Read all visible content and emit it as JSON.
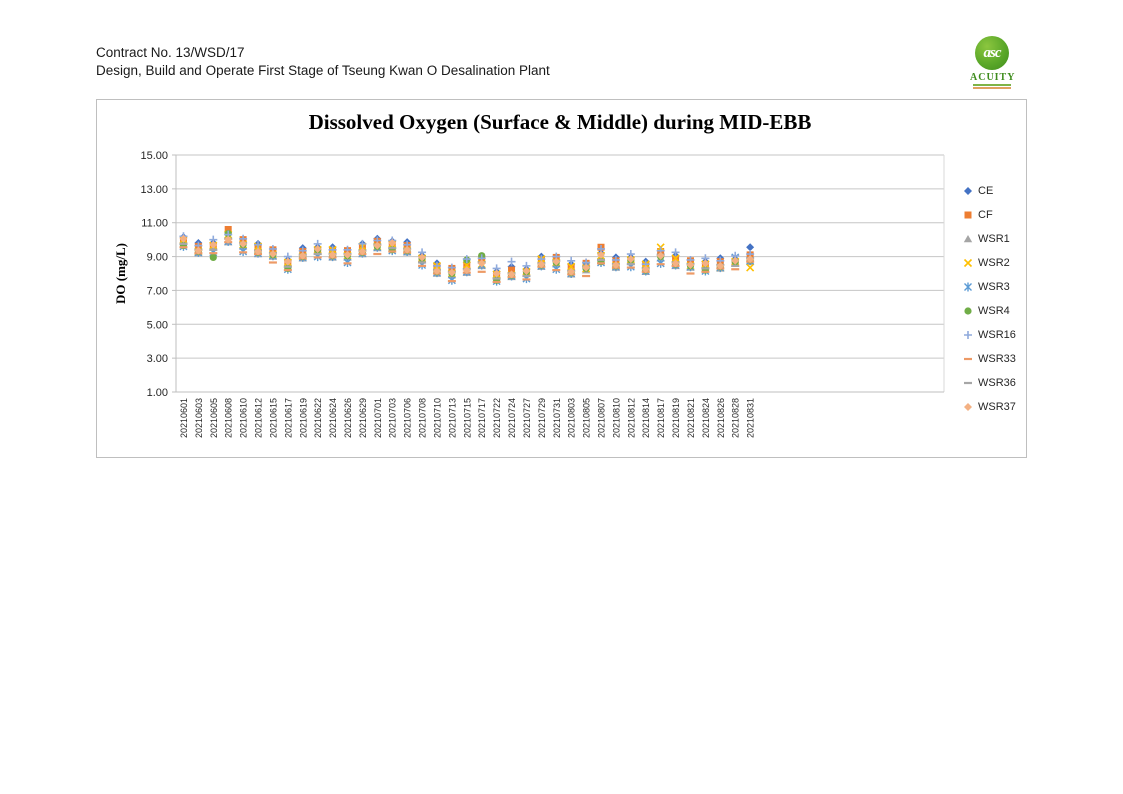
{
  "header": {
    "line1": "Contract No. 13/WSD/17",
    "line2": "Design, Build and Operate First Stage of Tseung Kwan O Desalination Plant"
  },
  "logo": {
    "monogram": "asc",
    "name": "ACUITY"
  },
  "chart_data": {
    "type": "scatter",
    "title": "Dissolved Oxygen (Surface & Middle) during MID-EBB",
    "xlabel": "",
    "ylabel": "DO (mg/L)",
    "ylim": [
      1,
      15
    ],
    "yticks": [
      1,
      3,
      5,
      7,
      9,
      11,
      13,
      15
    ],
    "ytick_labels": [
      "1.00",
      "3.00",
      "5.00",
      "7.00",
      "9.00",
      "11.00",
      "13.00",
      "15.00"
    ],
    "grid": true,
    "legend_position": "right",
    "categories": [
      "20210601",
      "20210603",
      "20210605",
      "20210608",
      "20210610",
      "20210612",
      "20210615",
      "20210617",
      "20210619",
      "20210622",
      "20210624",
      "20210626",
      "20210629",
      "20210701",
      "20210703",
      "20210706",
      "20210708",
      "20210710",
      "20210713",
      "20210715",
      "20210717",
      "20210722",
      "20210724",
      "20210727",
      "20210729",
      "20210731",
      "20210803",
      "20210805",
      "20210807",
      "20210810",
      "20210812",
      "20210814",
      "20210817",
      "20210819",
      "20210821",
      "20210824",
      "20210826",
      "20210828",
      "20210831"
    ],
    "series": [
      {
        "name": "CE",
        "marker": "diamond",
        "color": "#4472C4",
        "values": [
          10.15,
          9.8,
          9.8,
          10.45,
          9.85,
          9.75,
          9.25,
          8.8,
          9.5,
          9.55,
          9.55,
          9.2,
          9.75,
          10.05,
          9.9,
          9.85,
          9.05,
          8.6,
          8.15,
          8.65,
          8.7,
          8.1,
          8.4,
          8.25,
          9.0,
          8.8,
          8.55,
          8.45,
          9.2,
          8.95,
          8.95,
          8.7,
          9.15,
          9.05,
          8.6,
          8.7,
          8.9,
          8.85,
          9.55
        ]
      },
      {
        "name": "CF",
        "marker": "square",
        "color": "#ED7D31",
        "values": [
          9.95,
          9.6,
          9.6,
          10.6,
          10.0,
          9.55,
          9.4,
          8.6,
          9.3,
          9.35,
          9.35,
          9.35,
          9.55,
          9.9,
          9.7,
          9.65,
          8.85,
          8.4,
          8.3,
          8.45,
          8.85,
          7.9,
          8.2,
          8.05,
          8.8,
          8.95,
          8.35,
          8.6,
          9.55,
          8.75,
          8.75,
          8.5,
          9.3,
          8.85,
          8.75,
          8.5,
          8.7,
          8.65,
          9.1
        ]
      },
      {
        "name": "WSR1",
        "marker": "triangle",
        "color": "#A5A5A5",
        "values": [
          9.9,
          9.2,
          9.55,
          9.85,
          9.6,
          9.15,
          9.0,
          8.55,
          8.9,
          9.3,
          8.95,
          8.95,
          9.15,
          9.5,
          9.65,
          9.25,
          8.8,
          8.0,
          7.9,
          8.05,
          8.45,
          7.85,
          7.8,
          8.0,
          8.4,
          8.55,
          7.95,
          8.2,
          8.95,
          8.35,
          8.7,
          8.1,
          8.9,
          8.45,
          8.35,
          8.45,
          8.3,
          8.6,
          8.7
        ]
      },
      {
        "name": "WSR2",
        "marker": "x",
        "color": "#FFC000",
        "values": [
          10.0,
          9.3,
          9.65,
          10.3,
          9.7,
          9.6,
          9.1,
          8.65,
          9.0,
          9.4,
          9.4,
          9.05,
          9.6,
          9.6,
          9.75,
          9.35,
          8.9,
          8.45,
          8.0,
          8.5,
          8.55,
          7.95,
          7.9,
          8.1,
          8.85,
          8.65,
          8.4,
          8.3,
          9.05,
          8.45,
          8.8,
          8.55,
          9.55,
          8.9,
          8.45,
          8.55,
          8.35,
          8.7,
          8.35
        ]
      },
      {
        "name": "WSR3",
        "marker": "star",
        "color": "#5B9BD5",
        "values": [
          9.6,
          9.25,
          9.25,
          9.9,
          9.3,
          9.2,
          9.05,
          8.25,
          8.95,
          9.0,
          9.0,
          8.65,
          9.2,
          9.55,
          9.35,
          9.3,
          8.5,
          8.05,
          7.6,
          8.1,
          8.5,
          7.55,
          7.85,
          7.7,
          8.45,
          8.25,
          8.0,
          8.45,
          8.65,
          8.4,
          8.4,
          8.15,
          8.6,
          8.5,
          8.4,
          8.15,
          8.35,
          8.95,
          8.75
        ]
      },
      {
        "name": "WSR4",
        "marker": "circle",
        "color": "#70AD47",
        "values": [
          9.65,
          9.3,
          8.95,
          10.35,
          9.7,
          9.25,
          9.1,
          8.3,
          9.0,
          9.4,
          9.05,
          9.05,
          9.25,
          9.6,
          9.4,
          9.35,
          8.9,
          8.1,
          8.0,
          8.8,
          9.05,
          7.6,
          7.9,
          8.1,
          8.5,
          8.65,
          8.05,
          8.3,
          8.7,
          8.45,
          8.8,
          8.2,
          9.0,
          8.55,
          8.45,
          8.2,
          8.4,
          8.7,
          8.8
        ]
      },
      {
        "name": "WSR16",
        "marker": "plus",
        "color": "#8FAADC",
        "values": [
          10.2,
          9.65,
          10.0,
          10.3,
          10.05,
          9.7,
          9.45,
          9.0,
          9.35,
          9.75,
          9.4,
          9.4,
          9.75,
          9.95,
          9.95,
          9.7,
          9.25,
          8.45,
          8.35,
          8.85,
          8.9,
          8.3,
          8.7,
          8.45,
          8.85,
          9.0,
          8.75,
          8.65,
          9.45,
          8.8,
          9.15,
          8.55,
          9.35,
          9.25,
          8.8,
          8.9,
          8.75,
          9.05,
          9.15
        ]
      },
      {
        "name": "WSR33",
        "marker": "dash",
        "color": "#ED9A66",
        "values": [
          9.55,
          9.2,
          9.2,
          9.85,
          9.25,
          9.15,
          8.65,
          8.2,
          8.9,
          8.95,
          8.95,
          8.6,
          9.15,
          9.15,
          9.3,
          9.25,
          8.45,
          8.0,
          7.55,
          8.05,
          8.1,
          7.5,
          7.8,
          7.65,
          8.4,
          8.2,
          7.95,
          7.85,
          8.6,
          8.35,
          8.35,
          8.1,
          8.55,
          8.45,
          8.0,
          8.1,
          8.3,
          8.25,
          8.7
        ]
      },
      {
        "name": "WSR36",
        "marker": "dash",
        "color": "#A6A6A6",
        "values": [
          9.75,
          9.4,
          9.4,
          10.05,
          9.8,
          9.35,
          9.2,
          8.4,
          9.1,
          9.15,
          9.15,
          9.15,
          9.35,
          9.7,
          9.5,
          9.45,
          8.65,
          8.2,
          8.1,
          8.25,
          8.65,
          7.7,
          8.0,
          7.85,
          8.6,
          8.75,
          8.15,
          8.4,
          8.8,
          8.55,
          8.55,
          8.3,
          9.1,
          8.65,
          8.55,
          8.3,
          8.5,
          8.45,
          8.9
        ]
      },
      {
        "name": "WSR37",
        "marker": "diamond",
        "color": "#F4B183",
        "values": [
          10.05,
          9.35,
          9.7,
          10.0,
          9.75,
          9.3,
          9.15,
          8.7,
          9.05,
          9.45,
          9.1,
          9.1,
          9.3,
          9.65,
          9.8,
          9.4,
          8.95,
          8.15,
          8.05,
          8.2,
          8.6,
          8.0,
          7.95,
          8.15,
          8.55,
          8.7,
          8.1,
          8.35,
          9.1,
          8.5,
          8.85,
          8.25,
          9.05,
          8.6,
          8.5,
          8.6,
          8.45,
          8.75,
          8.85
        ]
      }
    ]
  }
}
